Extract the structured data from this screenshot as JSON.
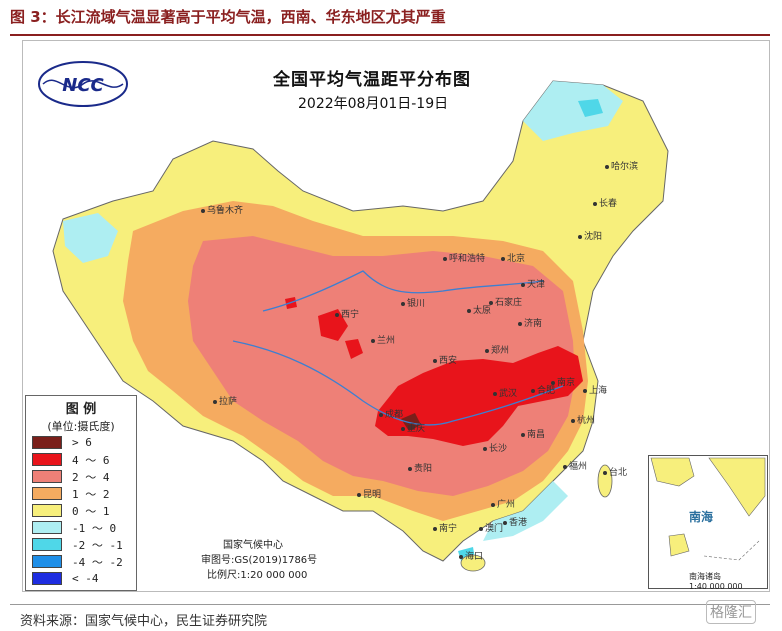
{
  "figure_title": "图 3：长江流域气温显著高于平均气温，西南、华东地区尤其严重",
  "map": {
    "title": "全国平均气温距平分布图",
    "subtitle": "2022年08月01日-19日",
    "logo_text": "NCC"
  },
  "legend": {
    "title": "图 例",
    "unit": "(单位:摄氏度)",
    "items": [
      {
        "label": "> 6",
        "color": "#7a1f1a"
      },
      {
        "label": "4 ～ 6",
        "color": "#e8141b"
      },
      {
        "label": "2 ～ 4",
        "color": "#ee8077"
      },
      {
        "label": "1 ～ 2",
        "color": "#f5ab60"
      },
      {
        "label": "0 ～ 1",
        "color": "#f7ef7c"
      },
      {
        "label": "-1 ～ 0",
        "color": "#aeeef2"
      },
      {
        "label": "-2 ～ -1",
        "color": "#4fd7e8"
      },
      {
        "label": "-4 ～ -2",
        "color": "#1f8fe8"
      },
      {
        "label": "< -4",
        "color": "#1e2de0"
      }
    ]
  },
  "credits": {
    "org": "国家气候中心",
    "approval": "审图号:GS(2019)1786号",
    "scale": "比例尺:1:20 000 000"
  },
  "inset": {
    "sea": "南海",
    "label": "南海诸岛",
    "scale": "1:40 000 000"
  },
  "cities": [
    "哈尔滨",
    "长春",
    "沈阳",
    "乌鲁木齐",
    "呼和浩特",
    "北京",
    "天津",
    "石家庄",
    "太原",
    "济南",
    "银川",
    "西宁",
    "兰州",
    "郑州",
    "西安",
    "南京",
    "合肥",
    "上海",
    "武汉",
    "杭州",
    "成都",
    "重庆",
    "南昌",
    "长沙",
    "贵阳",
    "福州",
    "台北",
    "昆明",
    "广州",
    "南宁",
    "澳门",
    "香港",
    "海口",
    "拉萨"
  ],
  "sea_labels": [
    "南 海"
  ],
  "source": "资料来源：国家气候中心，民生证券研究院",
  "watermark": "格隆汇"
}
